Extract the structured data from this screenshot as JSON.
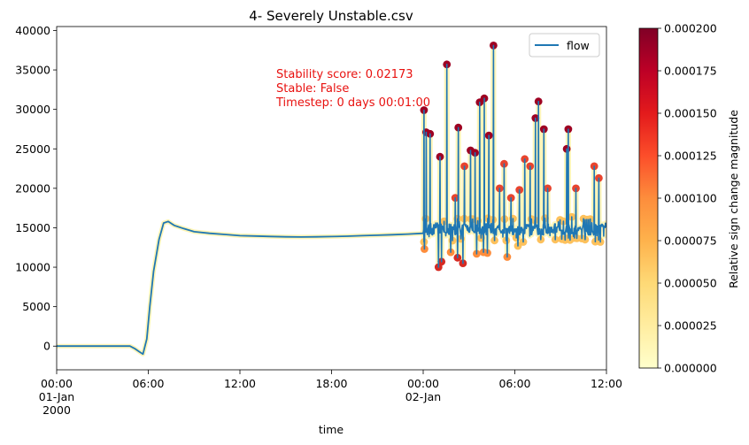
{
  "chart_data": {
    "type": "line",
    "title": "4- Severely Unstable.csv",
    "xlabel": "time",
    "ylabel": "",
    "x_range_hours": [
      0,
      36
    ],
    "ylim": [
      -3000,
      40500
    ],
    "x_ticks": [
      {
        "hour": 0,
        "lines": [
          "00:00",
          "01-Jan",
          "2000"
        ]
      },
      {
        "hour": 6,
        "lines": [
          "06:00"
        ]
      },
      {
        "hour": 12,
        "lines": [
          "12:00"
        ]
      },
      {
        "hour": 18,
        "lines": [
          "18:00"
        ]
      },
      {
        "hour": 24,
        "lines": [
          "00:00",
          "02-Jan"
        ]
      },
      {
        "hour": 30,
        "lines": [
          "06:00"
        ]
      },
      {
        "hour": 36,
        "lines": [
          "12:00"
        ]
      }
    ],
    "y_ticks": [
      0,
      5000,
      10000,
      15000,
      20000,
      25000,
      30000,
      35000,
      40000
    ],
    "legend": {
      "label": "flow",
      "color": "#1f77b4",
      "placement": "top-right"
    },
    "annotation": {
      "lines": [
        "Stability score: 0.02173",
        "Stable: False",
        "Timestep: 0 days 00:01:00"
      ],
      "color": "#e8110f"
    },
    "colorbar": {
      "label": "Relative sign change magnitude",
      "range": [
        0,
        0.0002
      ],
      "ticks": [
        "0.000000",
        "0.000025",
        "0.000050",
        "0.000075",
        "0.000100",
        "0.000125",
        "0.000150",
        "0.000175",
        "0.000200"
      ],
      "colormap": "YlOrRd"
    },
    "series": [
      {
        "name": "flow",
        "color": "#1f77b4",
        "smooth": [
          [
            0,
            0
          ],
          [
            4.8,
            0
          ],
          [
            5.1,
            -300
          ],
          [
            5.4,
            -700
          ],
          [
            5.65,
            -1000
          ],
          [
            5.9,
            900
          ],
          [
            6.1,
            5000
          ],
          [
            6.35,
            9500
          ],
          [
            6.7,
            13500
          ],
          [
            7.0,
            15600
          ],
          [
            7.3,
            15800
          ],
          [
            7.7,
            15300
          ],
          [
            8.3,
            14900
          ],
          [
            9.0,
            14500
          ],
          [
            10.0,
            14300
          ],
          [
            11.0,
            14150
          ],
          [
            12.0,
            14000
          ],
          [
            13.0,
            13950
          ],
          [
            14.0,
            13900
          ],
          [
            15.0,
            13850
          ],
          [
            16.0,
            13830
          ],
          [
            17.0,
            13850
          ],
          [
            18.0,
            13880
          ],
          [
            19.0,
            13930
          ],
          [
            20.0,
            14000
          ],
          [
            21.0,
            14050
          ],
          [
            22.0,
            14120
          ],
          [
            23.0,
            14200
          ],
          [
            24.0,
            14300
          ]
        ],
        "unstable_start_hour": 24.0,
        "unstable_end_hour": 36.0,
        "unstable_baseline": 14800,
        "spikes": [
          {
            "hour": 24.05,
            "value": 29900
          },
          {
            "hour": 24.2,
            "value": 27100
          },
          {
            "hour": 24.45,
            "value": 26900
          },
          {
            "hour": 25.1,
            "value": 24000
          },
          {
            "hour": 25.55,
            "value": 35700
          },
          {
            "hour": 26.1,
            "value": 18800
          },
          {
            "hour": 26.3,
            "value": 27700
          },
          {
            "hour": 26.7,
            "value": 22800
          },
          {
            "hour": 27.1,
            "value": 24800
          },
          {
            "hour": 27.4,
            "value": 24500
          },
          {
            "hour": 27.7,
            "value": 30900
          },
          {
            "hour": 28.0,
            "value": 31400
          },
          {
            "hour": 28.3,
            "value": 26700
          },
          {
            "hour": 28.6,
            "value": 38100
          },
          {
            "hour": 29.0,
            "value": 20000
          },
          {
            "hour": 29.3,
            "value": 23100
          },
          {
            "hour": 29.75,
            "value": 18800
          },
          {
            "hour": 30.3,
            "value": 19800
          },
          {
            "hour": 30.65,
            "value": 23700
          },
          {
            "hour": 31.0,
            "value": 22800
          },
          {
            "hour": 31.35,
            "value": 28900
          },
          {
            "hour": 31.55,
            "value": 31000
          },
          {
            "hour": 31.9,
            "value": 27500
          },
          {
            "hour": 32.15,
            "value": 20000
          },
          {
            "hour": 33.4,
            "value": 25000
          },
          {
            "hour": 33.5,
            "value": 27500
          },
          {
            "hour": 34.0,
            "value": 20000
          },
          {
            "hour": 35.2,
            "value": 22800
          },
          {
            "hour": 35.5,
            "value": 21300
          }
        ],
        "dips": [
          {
            "hour": 24.08,
            "value": 12300
          },
          {
            "hour": 25.0,
            "value": 10000
          },
          {
            "hour": 25.2,
            "value": 10700
          },
          {
            "hour": 25.8,
            "value": 11900
          },
          {
            "hour": 26.25,
            "value": 11200
          },
          {
            "hour": 26.6,
            "value": 10500
          },
          {
            "hour": 27.5,
            "value": 11700
          },
          {
            "hour": 27.95,
            "value": 11900
          },
          {
            "hour": 28.2,
            "value": 11800
          },
          {
            "hour": 29.5,
            "value": 11300
          },
          {
            "hour": 30.2,
            "value": 12700
          },
          {
            "hour": 30.55,
            "value": 13200
          },
          {
            "hour": 31.7,
            "value": 13500
          },
          {
            "hour": 32.65,
            "value": 13500
          },
          {
            "hour": 33.9,
            "value": 13700
          },
          {
            "hour": 34.6,
            "value": 13500
          }
        ]
      }
    ]
  }
}
